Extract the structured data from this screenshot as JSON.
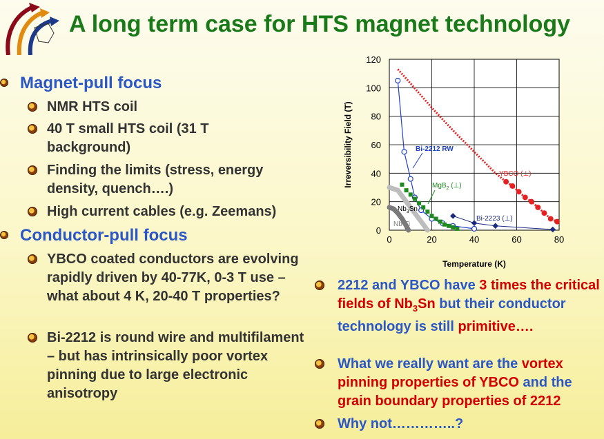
{
  "title": "A long term case for HTS magnet technology",
  "sections": [
    {
      "heading": "Magnet-pull focus",
      "items": [
        "NMR HTS coil",
        "40 T small HTS coil (31 T background)",
        "Finding the limits (stress, energy density, quench….)",
        "High current cables (e.g. Zeemans)"
      ]
    },
    {
      "heading": "Conductor-pull focus",
      "items": [
        "YBCO coated conductors are evolving rapidly driven by 40-77K, 0-3 T use – what about 4 K, 20-40 T properties?",
        "Bi-2212 is round wire and multifilament – but has intrinsically poor vortex pinning due to large electronic anisotropy"
      ]
    }
  ],
  "right_bullets": {
    "b1": {
      "p1": "2212 and YBCO have ",
      "p2": "3 times the critical fields of Nb",
      "p2sub": "3",
      "p2b": "Sn",
      "p3": " but their conductor technology is still ",
      "p4": "primitive…."
    },
    "b2": {
      "p1": "What we really want are the ",
      "p2": "vortex pinning properties of YBCO",
      "p3": " and the ",
      "p4": "grain boundary properties of 2212"
    },
    "b3": {
      "p1": "Why not…………..?"
    }
  },
  "colors": {
    "title": "#1a7a1a",
    "heading": "#2b57c4",
    "body": "#333333",
    "emphasis": "#d40000"
  },
  "icons": [
    "logo-arrows-icon",
    "bullet-dot-icon"
  ],
  "chart_data": {
    "type": "scatter",
    "xlabel": "Temperature (K)",
    "ylabel": "Irreversibility Field (T)",
    "xlim": [
      0,
      80
    ],
    "ylim": [
      0,
      120
    ],
    "xticks": [
      0,
      20,
      40,
      60,
      80
    ],
    "yticks": [
      0,
      20,
      40,
      60,
      80,
      100,
      120
    ],
    "grid": true,
    "series": [
      {
        "name": "YBCO (⊥)",
        "color": "#e52222",
        "style": "dotted-line-with-markers",
        "x": [
          4,
          10,
          20,
          30,
          40,
          50,
          55,
          58,
          61,
          64,
          67,
          70,
          73,
          76,
          79
        ],
        "y": [
          113,
          103,
          86,
          70,
          55,
          40,
          34,
          31,
          27,
          23,
          20,
          16,
          12,
          8,
          6
        ]
      },
      {
        "name": "Bi-2212 RW",
        "color": "#2040c8",
        "style": "line-open-circles",
        "x": [
          4,
          7,
          10,
          12,
          15,
          20,
          25,
          30,
          40
        ],
        "y": [
          105,
          55,
          36,
          23,
          14,
          8,
          5,
          3,
          1
        ]
      },
      {
        "name": "MgB",
        "name_sub": "2",
        "name_suffix": " (⊥)",
        "color": "#1e8a1e",
        "style": "square-markers",
        "x": [
          6,
          8,
          10,
          12,
          14,
          16,
          18,
          20,
          22,
          24,
          26,
          28,
          30,
          32
        ],
        "y": [
          32,
          28,
          25,
          22,
          19,
          16,
          13,
          10,
          8,
          6,
          4,
          3,
          2,
          1
        ]
      },
      {
        "name": "Bi-2223 (⊥)",
        "color": "#1a2a80",
        "style": "line-diamonds",
        "x": [
          30,
          40,
          50,
          77
        ],
        "y": [
          10,
          5,
          3,
          0.5
        ]
      },
      {
        "name": "Nb",
        "name_sub": "3",
        "name_suffix": "Sn",
        "color": "#bdbdbd",
        "style": "thick-line",
        "x": [
          0,
          4,
          8,
          12,
          16,
          18
        ],
        "y": [
          30,
          28,
          20,
          12,
          4,
          0
        ]
      },
      {
        "name": "Nb-Ti",
        "color": "#7a7a7a",
        "style": "thick-line",
        "x": [
          0,
          2,
          4,
          6,
          8,
          9
        ],
        "y": [
          16,
          15,
          12,
          8,
          3,
          0
        ]
      }
    ]
  }
}
